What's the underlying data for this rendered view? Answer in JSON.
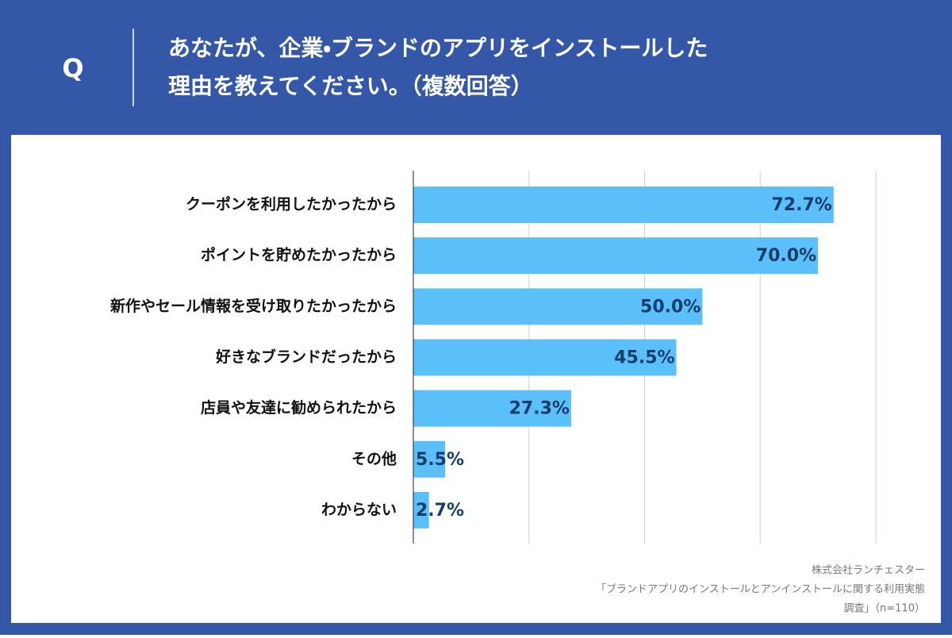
{
  "header": {
    "mark": "Q",
    "title_lines": [
      "あなたが、企業・ブランドのアプリをインストールした",
      "理由を教えてください。（複数回答）"
    ]
  },
  "chart_data": {
    "type": "bar",
    "orientation": "horizontal",
    "categories": [
      "クーポンを利用したかったから",
      "ポイントを貯めたかったから",
      "新作やセール情報を受け取りたかったから",
      "好きなブランドだったから",
      "店員や友達に勧められたから",
      "その他",
      "わからない"
    ],
    "values": [
      72.7,
      70.0,
      50.0,
      45.5,
      27.3,
      5.5,
      2.7
    ],
    "value_labels": [
      "72.7%",
      "70.0%",
      "50.0%",
      "45.5%",
      "27.3%",
      "5.5%",
      "2.7%"
    ],
    "color": "#5bbffa",
    "label_color": "#163d6b",
    "xlim": [
      0,
      80
    ],
    "xticks": [
      0,
      20,
      40,
      60,
      80
    ],
    "grid": true
  },
  "footer": {
    "source_lines": [
      "株式会社ランチェスター",
      "「ブランドアプリのインストールとアンインストールに関する利用実態",
      "調査」（n=110）"
    ]
  }
}
